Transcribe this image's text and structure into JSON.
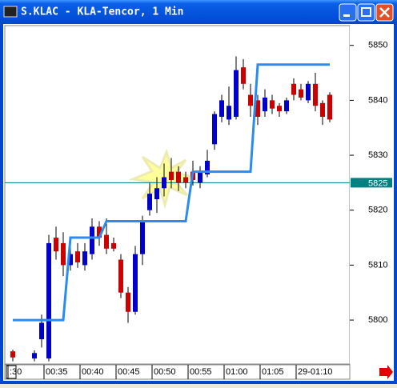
{
  "chart_data": {
    "type": "candlestick",
    "title": "S.KLAC - KLA-Tencor, 1 Min",
    "categories": [
      ":30",
      null,
      null,
      null,
      null,
      "00:35",
      null,
      null,
      null,
      null,
      "00:40",
      null,
      null,
      null,
      null,
      "00:45",
      null,
      null,
      null,
      null,
      "00:50",
      null,
      null,
      null,
      null,
      "00:55",
      null,
      null,
      null,
      null,
      "01:00",
      null,
      null,
      null,
      null,
      "01:05",
      null,
      null,
      null,
      null,
      "29-01:10",
      null,
      null,
      null,
      null
    ],
    "open": [
      5794.3,
      null,
      null,
      5793,
      5796.5,
      5793,
      5815,
      5814,
      5810,
      5812.5,
      5810,
      5812,
      5817,
      5815.5,
      5814,
      5811,
      5805,
      5801.5,
      5812,
      5820,
      5822,
      5824,
      5827,
      5827,
      5826,
      5827,
      5825,
      5826.5,
      5832,
      5837,
      5836.5,
      5837,
      5846,
      5841,
      5840,
      5838,
      5840,
      5839,
      5838,
      5843,
      5842,
      5840,
      5843,
      5839.5,
      5841
    ],
    "high": [
      5794.6,
      null,
      null,
      5794.5,
      5801,
      5815.5,
      5817,
      5816,
      5813.5,
      5814,
      5814,
      5818.5,
      5818,
      5818.5,
      5815,
      5812,
      5806,
      5813.5,
      5819,
      5825,
      5826,
      5828.5,
      5829.5,
      5828,
      5827,
      5829,
      5828,
      5831,
      5838,
      5841,
      5842.5,
      5848,
      5847.5,
      5843,
      5841,
      5842,
      5841,
      5839.5,
      5840.5,
      5844,
      5843,
      5843.5,
      5845,
      5840,
      5841.5
    ],
    "low": [
      5792.5,
      null,
      null,
      5792.5,
      5795,
      5792.5,
      5811,
      5808,
      5809,
      5809.5,
      5809,
      5811,
      5813.5,
      5812,
      5812.5,
      5804,
      5799.5,
      5801,
      5810,
      5819,
      5819.5,
      5822.5,
      5824,
      5823.5,
      5824,
      5824.5,
      5824,
      5826,
      5831,
      5836,
      5835.5,
      5836.5,
      5842,
      5837,
      5835.5,
      5837,
      5837.5,
      5837,
      5837.5,
      5840,
      5840,
      5839.5,
      5838,
      5835.5,
      5836
    ],
    "close": [
      5793.2,
      null,
      null,
      5794,
      5799.5,
      5814,
      5812.5,
      5810,
      5812,
      5810.5,
      5812.5,
      5817,
      5815,
      5813,
      5813,
      5805,
      5801.5,
      5812,
      5818,
      5823,
      5824,
      5826,
      5825.5,
      5825,
      5825,
      5825.5,
      5827,
      5829,
      5837.5,
      5840,
      5839,
      5845.5,
      5843,
      5839,
      5837,
      5840.5,
      5838.5,
      5838,
      5840,
      5841,
      5840.5,
      5843,
      5839,
      5837,
      5836.5
    ],
    "up_color": "#0000cc",
    "down_color": "#cc0000",
    "line": {
      "color": "#2a8cf0",
      "values": [
        5800,
        5800,
        5800,
        5800,
        5800,
        5800,
        5800,
        5800,
        5815,
        5815,
        5815,
        5815,
        5815,
        5818,
        5818,
        5818,
        5818,
        5818,
        5818,
        5818,
        5818,
        5818,
        5818,
        5818,
        5818,
        5827,
        5827,
        5827,
        5827,
        5827,
        5827,
        5827,
        5827,
        5827,
        5846.5,
        5846.5,
        5846.5,
        5846.5,
        5846.5,
        5846.5,
        5846.5,
        5846.5,
        5846.5,
        5846.5,
        5846.5
      ]
    },
    "price_line": 5825,
    "price_line_color": "#008080",
    "ylim": [
      5792,
      5853.6
    ],
    "yticks": [
      5800,
      5810,
      5820,
      5830,
      5840,
      5850
    ]
  }
}
